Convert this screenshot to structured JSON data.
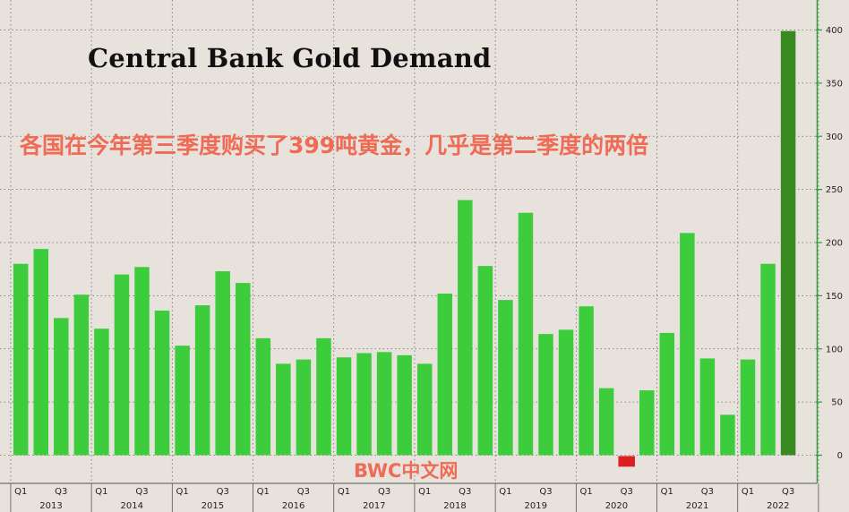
{
  "title": "Central Bank Gold Demand",
  "subtitle": "各国在今年第三季度购买了399吨黄金，几乎是第二季度的两倍",
  "watermark": "BWC中文网",
  "chart_data": {
    "type": "bar",
    "title": "Central Bank Gold Demand",
    "categories": [
      "2013 Q1",
      "2013 Q2",
      "2013 Q3",
      "2013 Q4",
      "2014 Q1",
      "2014 Q2",
      "2014 Q3",
      "2014 Q4",
      "2015 Q1",
      "2015 Q2",
      "2015 Q3",
      "2015 Q4",
      "2016 Q1",
      "2016 Q2",
      "2016 Q3",
      "2016 Q4",
      "2017 Q1",
      "2017 Q2",
      "2017 Q3",
      "2017 Q4",
      "2018 Q1",
      "2018 Q2",
      "2018 Q3",
      "2018 Q4",
      "2019 Q1",
      "2019 Q2",
      "2019 Q3",
      "2019 Q4",
      "2020 Q1",
      "2020 Q2",
      "2020 Q3",
      "2020 Q4",
      "2021 Q1",
      "2021 Q2",
      "2021 Q3",
      "2021 Q4",
      "2022 Q1",
      "2022 Q2",
      "2022 Q3"
    ],
    "values": [
      180,
      194,
      129,
      151,
      119,
      170,
      177,
      136,
      103,
      141,
      173,
      162,
      110,
      86,
      90,
      110,
      92,
      96,
      97,
      94,
      86,
      152,
      240,
      178,
      146,
      228,
      114,
      118,
      140,
      63,
      -10,
      61,
      115,
      209,
      91,
      38,
      90,
      180,
      399
    ],
    "ylim": [
      -25,
      425
    ],
    "yticks": [
      0,
      50,
      100,
      150,
      200,
      250,
      300,
      350,
      400
    ],
    "x_tick_labels": [
      "Q1",
      "Q3"
    ],
    "year_labels": [
      "2013",
      "2014",
      "2015",
      "2016",
      "2017",
      "2018",
      "2019",
      "2020",
      "2021",
      "2022"
    ],
    "grid": true,
    "y_axis_side": "right",
    "colors": {
      "positive": "#3ccc3c",
      "negative": "#dd1f1f",
      "latest": "#3a8a22",
      "background": "#e8e2dd",
      "axis": "#2e9f32"
    }
  }
}
